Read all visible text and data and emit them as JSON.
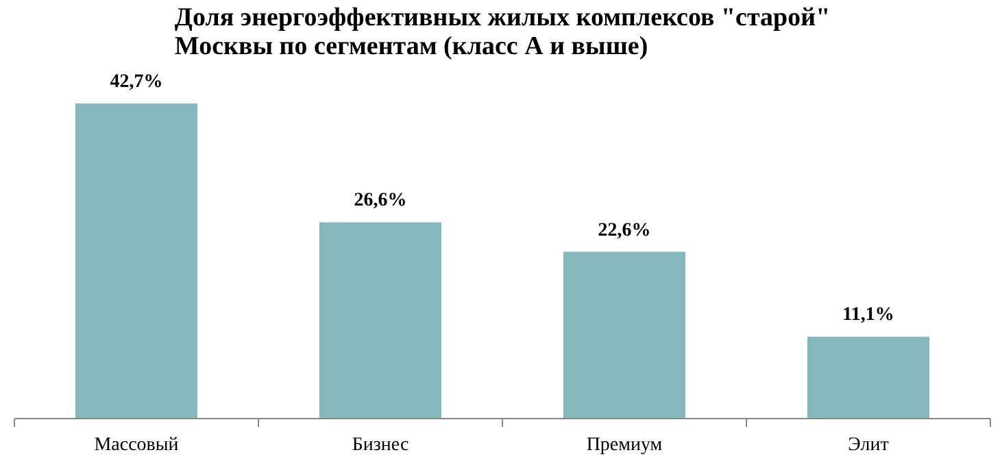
{
  "chart_data": {
    "type": "bar",
    "title": "Доля энергоэффективных жилых комплексов \"старой\"\nМосквы по сегментам (класс А и выше)",
    "categories": [
      "Массовый",
      "Бизнес",
      "Премиум",
      "Элит"
    ],
    "values": [
      42.7,
      26.6,
      22.6,
      11.1
    ],
    "value_labels": [
      "42,7%",
      "26,6%",
      "22,6%",
      "11,1%"
    ],
    "color": "#85b8bb",
    "tick_labels": "x",
    "grid": false
  }
}
